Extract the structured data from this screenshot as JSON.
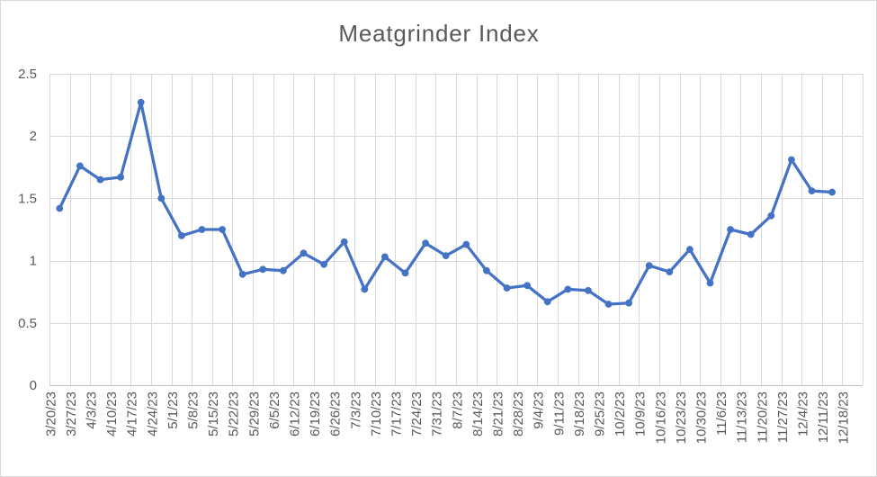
{
  "chart_data": {
    "type": "line",
    "title": "Meatgrinder Index",
    "categories": [
      "3/20/23",
      "3/27/23",
      "4/3/23",
      "4/10/23",
      "4/17/23",
      "4/24/23",
      "5/1/23",
      "5/8/23",
      "5/15/23",
      "5/22/23",
      "5/29/23",
      "6/5/23",
      "6/12/23",
      "6/19/23",
      "6/26/23",
      "7/3/23",
      "7/10/23",
      "7/17/23",
      "7/24/23",
      "7/31/23",
      "8/7/23",
      "8/14/23",
      "8/21/23",
      "8/28/23",
      "9/4/23",
      "9/11/23",
      "9/18/23",
      "9/25/23",
      "10/2/23",
      "10/9/23",
      "10/16/23",
      "10/23/23",
      "10/30/23",
      "11/6/23",
      "11/13/23",
      "11/20/23",
      "11/27/23",
      "12/4/23",
      "12/11/23",
      "12/18/23"
    ],
    "values": [
      1.42,
      1.76,
      1.65,
      1.67,
      2.27,
      1.5,
      1.2,
      1.25,
      1.25,
      0.89,
      0.93,
      0.92,
      1.06,
      0.97,
      1.15,
      0.77,
      1.03,
      0.9,
      1.14,
      1.04,
      1.13,
      0.92,
      0.78,
      0.8,
      0.67,
      0.77,
      0.76,
      0.65,
      0.66,
      0.96,
      0.91,
      1.09,
      0.82,
      1.25,
      1.21,
      1.36,
      1.81,
      1.56,
      1.55,
      null
    ],
    "xlabel": "",
    "ylabel": "",
    "ylim": [
      0,
      2.5
    ],
    "ytick_step": 0.5,
    "yticks": [
      "0",
      "0.5",
      "1",
      "1.5",
      "2",
      "2.5"
    ],
    "grid": "both",
    "legend": "none",
    "x_label_rotation_deg": 90,
    "colors": {
      "series": "#4472C4",
      "gridline": "#D9D9D9",
      "axis_line": "#BFBFBF",
      "text": "#595959",
      "background": "#FFFFFF",
      "border": "#D9D9D9"
    }
  }
}
